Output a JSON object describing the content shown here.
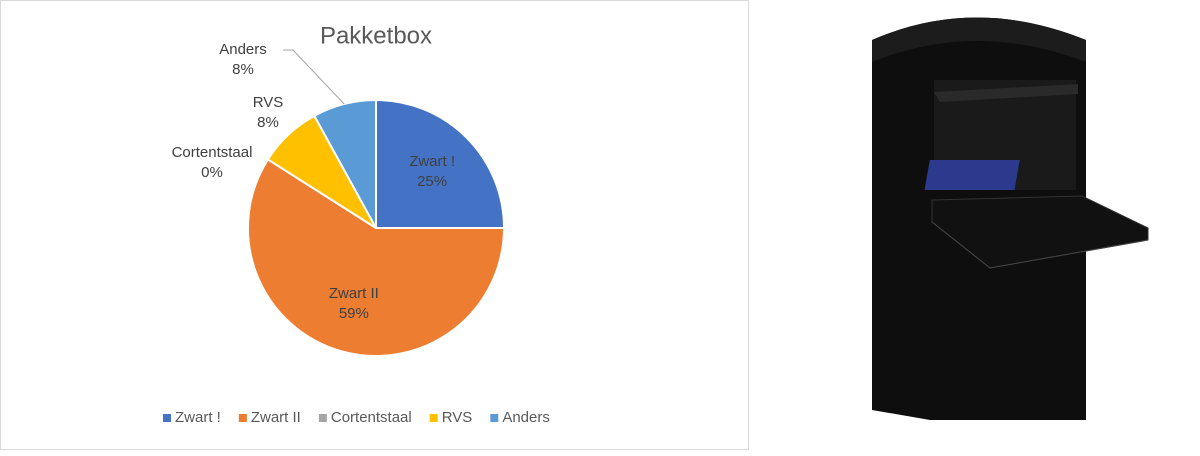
{
  "chart_data": {
    "type": "pie",
    "title": "Pakketbox",
    "categories": [
      "Zwart !",
      "Zwart II",
      "Cortentstaal",
      "RVS",
      "Anders"
    ],
    "values": [
      25,
      59,
      0,
      8,
      8
    ],
    "value_labels": [
      "25%",
      "59%",
      "0%",
      "8%",
      "8%"
    ],
    "colors": [
      "#4472c4",
      "#ed7d31",
      "#a5a5a5",
      "#ffc000",
      "#5b9bd5"
    ],
    "legend": "bottom"
  }
}
